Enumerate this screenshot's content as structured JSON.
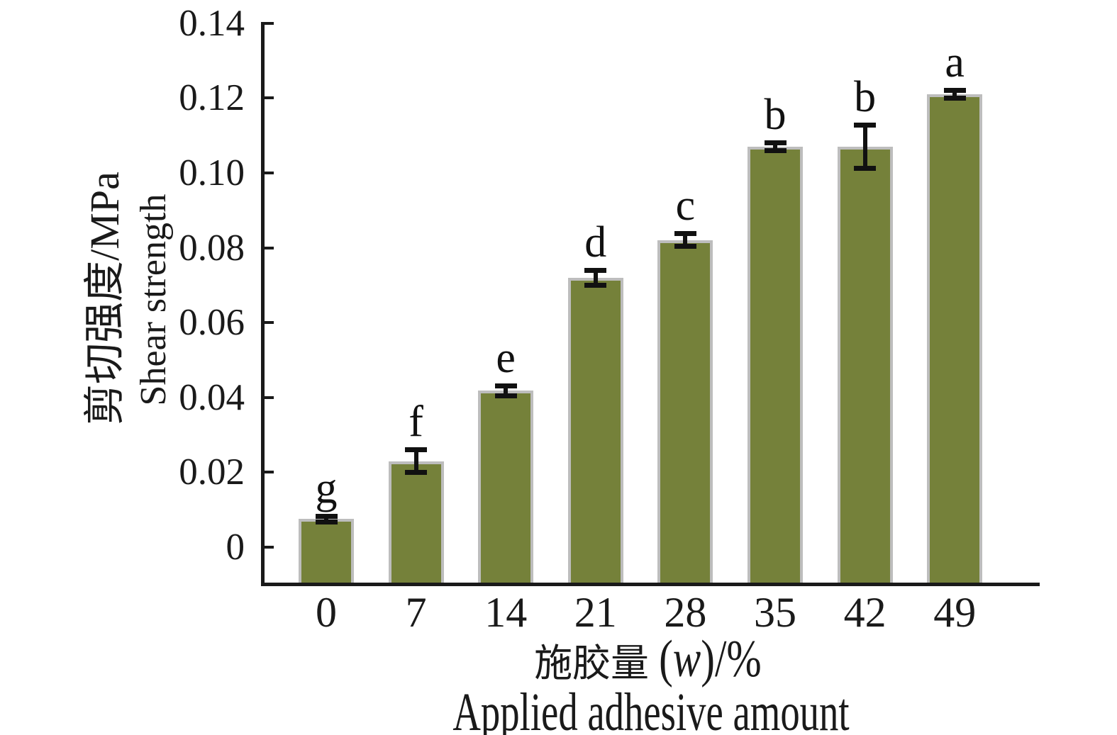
{
  "chart_data": {
    "type": "bar",
    "categories": [
      "0",
      "7",
      "14",
      "21",
      "28",
      "35",
      "42",
      "49"
    ],
    "values": [
      0.0075,
      0.023,
      0.0418,
      0.0719,
      0.0821,
      0.107,
      0.107,
      0.121
    ],
    "errors": [
      0.0008,
      0.003,
      0.0013,
      0.002,
      0.0017,
      0.0011,
      0.0057,
      0.001
    ],
    "sig_letters": [
      "g",
      "f",
      "e",
      "d",
      "c",
      "b",
      "b",
      "a"
    ],
    "ytick_labels": [
      "0",
      "0.02",
      "0.04",
      "0.06",
      "0.08",
      "0.10",
      "0.12",
      "0.14"
    ],
    "yticks": [
      0,
      0.02,
      0.04,
      0.06,
      0.08,
      0.1,
      0.12,
      0.14
    ],
    "ylim": [
      -0.01,
      0.14
    ],
    "ylabel_zh": "剪切强度/MPa",
    "ylabel_en": "Shear strength",
    "xlabel_zh": "施胶量",
    "xlabel_paren_open": "(",
    "xlabel_w": "w",
    "xlabel_paren_close_unit": ")/%",
    "xlabel_en": "Applied adhesive amount",
    "bar_color": "#75813a",
    "bar_edge_color": "#bdbdbd",
    "axis_color": "#1a1a1a",
    "grid": false,
    "legend": null
  }
}
